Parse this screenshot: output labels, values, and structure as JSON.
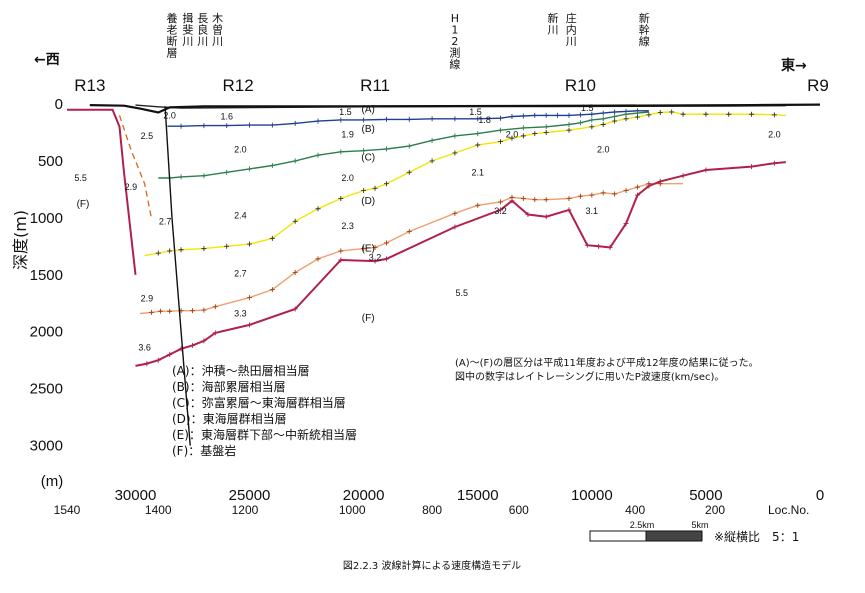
{
  "chart_data": {
    "type": "line",
    "caption": "図2.2.3 波線計算による速度構造モデル",
    "ylabel": "深度(m)",
    "y_unit": "(m)",
    "xlim": [
      33000,
      0
    ],
    "ylim": [
      3100,
      0
    ],
    "x_ticks": [
      30000,
      25000,
      20000,
      15000,
      10000,
      5000,
      0
    ],
    "y_ticks": [
      0,
      500,
      1000,
      1500,
      2000,
      2500,
      3000
    ],
    "loc_no": {
      "label": "Loc.No.",
      "ticks": [
        {
          "x": 33000,
          "label": "1540"
        },
        {
          "x": 29000,
          "label": "1400"
        },
        {
          "x": 25200,
          "label": "1200"
        },
        {
          "x": 20500,
          "label": "1000"
        },
        {
          "x": 17000,
          "label": "800"
        },
        {
          "x": 13200,
          "label": "600"
        },
        {
          "x": 8100,
          "label": "400"
        },
        {
          "x": 4600,
          "label": "200"
        }
      ]
    },
    "direction_west": "←西",
    "direction_east": "東→",
    "regions": [
      {
        "label": "R13",
        "x": 32000
      },
      {
        "label": "R12",
        "x": 25500
      },
      {
        "label": "R11",
        "x": 19500
      },
      {
        "label": "R10",
        "x": 10500
      },
      {
        "label": "R9",
        "x": 0
      }
    ],
    "features": [
      {
        "x": 28400,
        "label": "養老断層"
      },
      {
        "x": 27700,
        "label": "揖斐川"
      },
      {
        "x": 27050,
        "label": "長良川"
      },
      {
        "x": 26400,
        "label": "木曽川"
      },
      {
        "x": 16000,
        "label": "H12測線"
      },
      {
        "x": 11700,
        "label": "新川"
      },
      {
        "x": 10900,
        "label": "庄内川"
      },
      {
        "x": 7700,
        "label": "新幹線"
      }
    ],
    "series": [
      {
        "name": "(A)",
        "color": "#222222",
        "x": [
          30000,
          29000,
          28000,
          24000,
          20000,
          16000,
          12000,
          8000,
          4000,
          1500
        ],
        "y": [
          10,
          25,
          35,
          30,
          25,
          22,
          22,
          20,
          18,
          15
        ]
      },
      {
        "name": "(B)",
        "color": "#1f3f8f",
        "x": [
          28600,
          28000,
          27000,
          26000,
          25000,
          24000,
          23000,
          22000,
          21000,
          20000,
          19000,
          18000,
          17000,
          16000,
          15000,
          14000,
          13500,
          13000,
          12500,
          12000,
          11500,
          11000,
          10500,
          10000,
          9500,
          9000,
          8500,
          8000,
          7500
        ],
        "y": [
          195,
          195,
          190,
          190,
          185,
          185,
          170,
          150,
          140,
          140,
          135,
          135,
          130,
          130,
          130,
          125,
          110,
          105,
          100,
          100,
          100,
          100,
          95,
          90,
          80,
          70,
          65,
          60,
          60
        ]
      },
      {
        "name": "(C)",
        "color": "#2e7d4f",
        "x": [
          29000,
          28500,
          28000,
          27000,
          26000,
          25000,
          24000,
          23000,
          22000,
          21000,
          20000,
          19000,
          18000,
          17000,
          16000,
          15000,
          14000,
          13000,
          12000,
          11000,
          10500,
          10000,
          9500,
          9000,
          8500,
          8000,
          7500
        ],
        "y": [
          650,
          650,
          640,
          630,
          600,
          570,
          540,
          500,
          450,
          420,
          410,
          395,
          370,
          320,
          280,
          260,
          230,
          210,
          200,
          180,
          165,
          140,
          130,
          110,
          90,
          80,
          70
        ]
      },
      {
        "name": "(D)",
        "color": "#f2e600",
        "x": [
          29600,
          29000,
          28500,
          28000,
          27000,
          26000,
          25000,
          24000,
          23000,
          22000,
          21000,
          20000,
          19500,
          19000,
          18000,
          17000,
          16000,
          15000,
          14000,
          13500,
          13000,
          12500,
          12000,
          11000,
          10000,
          9500,
          9000,
          8500,
          8000,
          7500,
          7000,
          6500,
          6000,
          5000,
          4000,
          3000,
          2000,
          1500
        ],
        "y": [
          1330,
          1310,
          1290,
          1280,
          1270,
          1250,
          1230,
          1180,
          1030,
          920,
          830,
          760,
          740,
          700,
          600,
          500,
          430,
          360,
          330,
          300,
          280,
          260,
          250,
          230,
          200,
          180,
          150,
          130,
          115,
          95,
          75,
          70,
          90,
          90,
          90,
          90,
          95,
          100
        ]
      },
      {
        "name": "(E)",
        "color": "#f0a070",
        "x": [
          29800,
          29300,
          28900,
          28500,
          28000,
          27500,
          27000,
          26500,
          25000,
          24000,
          23000,
          22000,
          21000,
          20000,
          19500,
          19000,
          18000,
          16000,
          15000,
          14000,
          13500,
          13000,
          12500,
          12000,
          11000,
          10500,
          10000,
          9500,
          9000,
          8500,
          8000,
          7500,
          7000,
          6000
        ],
        "y": [
          1840,
          1830,
          1820,
          1820,
          1815,
          1815,
          1810,
          1780,
          1700,
          1630,
          1480,
          1360,
          1290,
          1270,
          1260,
          1220,
          1120,
          960,
          890,
          860,
          820,
          830,
          840,
          840,
          830,
          810,
          800,
          780,
          790,
          760,
          730,
          700,
          700,
          700
        ]
      },
      {
        "name": "(F)",
        "color": "#b0204a",
        "x": [
          30000,
          29500,
          29000,
          28500,
          28000,
          27500,
          27000,
          26500,
          25000,
          23000,
          21000,
          19500,
          19000,
          16000,
          14000,
          13500,
          12800,
          12000,
          11000,
          10200,
          9700,
          9200,
          8500,
          8000,
          7500,
          7000,
          6000,
          5000,
          3000,
          2000,
          1500
        ],
        "y": [
          2300,
          2280,
          2250,
          2200,
          2150,
          2120,
          2080,
          2010,
          1940,
          1800,
          1370,
          1380,
          1360,
          1080,
          930,
          850,
          970,
          990,
          930,
          1240,
          1250,
          1260,
          1050,
          800,
          720,
          680,
          630,
          580,
          550,
          520,
          510
        ]
      }
    ],
    "surface": {
      "x": [
        32000,
        30500,
        29800,
        29000,
        28500,
        27000,
        20000,
        10000,
        3000,
        0
      ],
      "y": [
        10,
        15,
        40,
        75,
        30,
        20,
        20,
        15,
        10,
        5
      ]
    },
    "r13_bedrock": {
      "x": [
        33000,
        31000,
        30700,
        30500,
        30000
      ],
      "y": [
        50,
        50,
        200,
        600,
        1500
      ]
    },
    "r13_dashed": {
      "x": [
        30700,
        30200,
        29600,
        29300
      ],
      "y": [
        100,
        400,
        700,
        1000
      ]
    },
    "fault": {
      "x": [
        28700,
        28400,
        28000,
        27600
      ],
      "y": [
        20,
        1000,
        2000,
        3000
      ]
    },
    "velocities": [
      {
        "x": 28500,
        "y": 100,
        "label": "2.0"
      },
      {
        "x": 26000,
        "y": 110,
        "label": "1.6"
      },
      {
        "x": 20800,
        "y": 70,
        "label": "1.5"
      },
      {
        "x": 15100,
        "y": 70,
        "label": "1.5"
      },
      {
        "x": 14700,
        "y": 140,
        "label": "1.8"
      },
      {
        "x": 10200,
        "y": 35,
        "label": "1.5"
      },
      {
        "x": 29500,
        "y": 280,
        "label": "2.5"
      },
      {
        "x": 20700,
        "y": 270,
        "label": "1.9"
      },
      {
        "x": 13500,
        "y": 270,
        "label": "2.0"
      },
      {
        "x": 25400,
        "y": 400,
        "label": "2.0"
      },
      {
        "x": 9500,
        "y": 400,
        "label": "2.0"
      },
      {
        "x": 2000,
        "y": 270,
        "label": "2.0"
      },
      {
        "x": 32400,
        "y": 650,
        "label": "5.5"
      },
      {
        "x": 30200,
        "y": 730,
        "label": "2.9"
      },
      {
        "x": 20700,
        "y": 650,
        "label": "2.0"
      },
      {
        "x": 15000,
        "y": 600,
        "label": "2.1"
      },
      {
        "x": 28700,
        "y": 1030,
        "label": "2.7"
      },
      {
        "x": 25400,
        "y": 980,
        "label": "2.4"
      },
      {
        "x": 20700,
        "y": 1070,
        "label": "2.3"
      },
      {
        "x": 14000,
        "y": 940,
        "label": "3.2"
      },
      {
        "x": 10000,
        "y": 940,
        "label": "3.1"
      },
      {
        "x": 19500,
        "y": 1350,
        "label": "3.2"
      },
      {
        "x": 25400,
        "y": 1490,
        "label": "2.7"
      },
      {
        "x": 29500,
        "y": 1710,
        "label": "2.9"
      },
      {
        "x": 25400,
        "y": 1840,
        "label": "3.3"
      },
      {
        "x": 15700,
        "y": 1660,
        "label": "5.5"
      },
      {
        "x": 29600,
        "y": 2140,
        "label": "3.6"
      }
    ],
    "layer_labels": [
      {
        "x": 19800,
        "y": 50,
        "label": "(A)"
      },
      {
        "x": 19800,
        "y": 220,
        "label": "(B)"
      },
      {
        "x": 19800,
        "y": 470,
        "label": "(C)"
      },
      {
        "x": 19800,
        "y": 850,
        "label": "(D)"
      },
      {
        "x": 19800,
        "y": 1270,
        "label": "(E)"
      },
      {
        "x": 19800,
        "y": 1880,
        "label": "(F)"
      },
      {
        "x": 32300,
        "y": 880,
        "label": "(F)"
      }
    ],
    "legend": [
      "(A)：沖積～熱田層相当層",
      "(B)：海部累層相当層",
      "(C)：弥富累層～東海層群相当層",
      "(D)：東海層群相当層",
      "(E)：東海層群下部～中新統相当層",
      "(F)：基盤岩"
    ],
    "notes": [
      "(A)～(F)の層区分は平成11年度および平成12年度の結果に従った。",
      "図中の数字はレイトレーシングに用いたP波速度(km/sec)。"
    ],
    "scale_bar": {
      "label1": "2.5km",
      "label2": "5km",
      "ratio": "※縦横比　5：1"
    }
  }
}
